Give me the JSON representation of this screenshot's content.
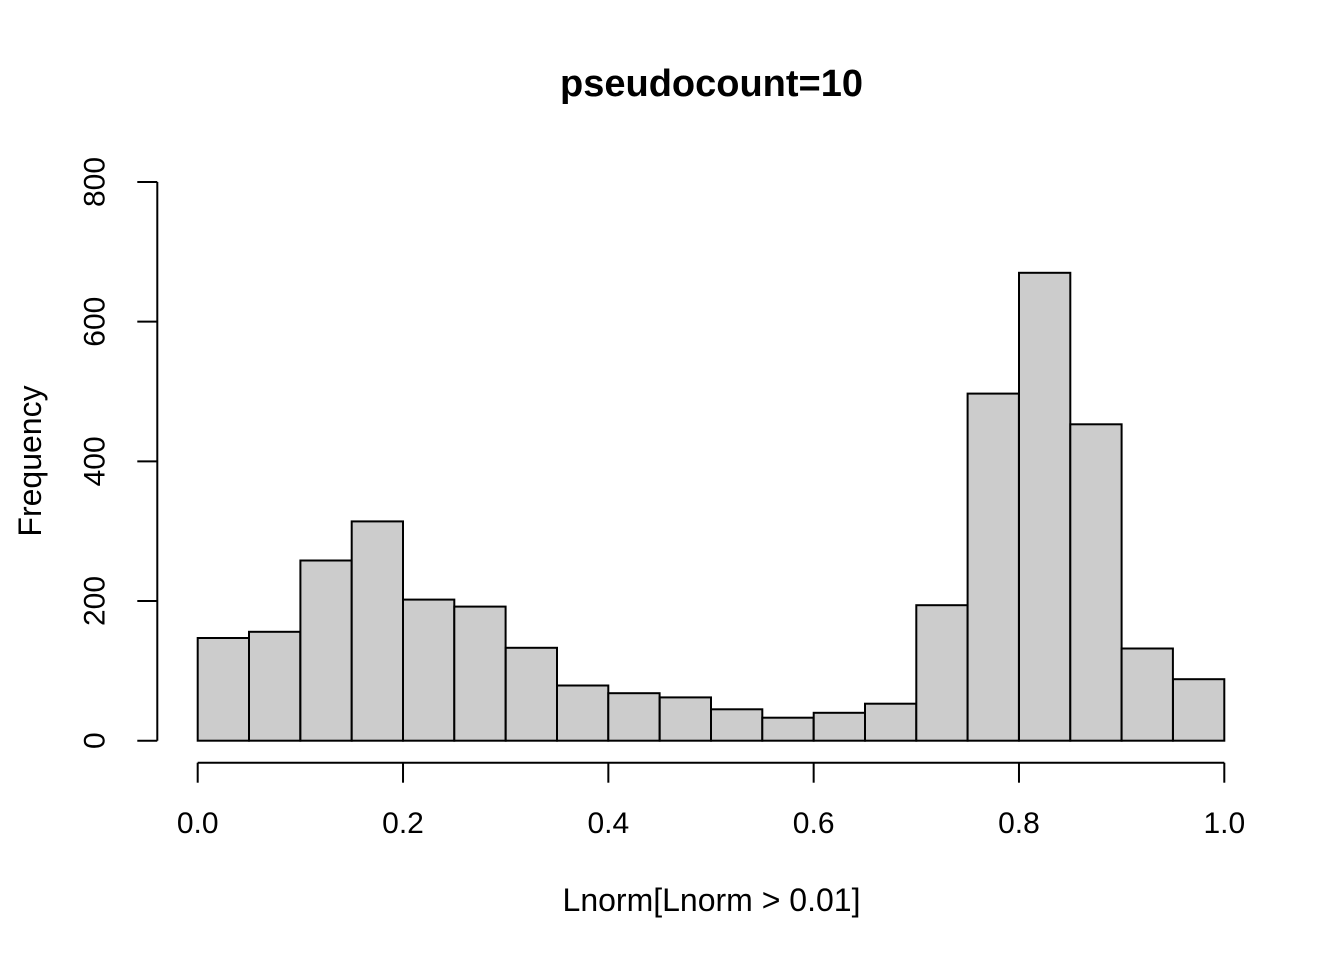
{
  "figure": {
    "title": "pseudocount=10",
    "xlabel": "Lnorm[Lnorm > 0.01]",
    "ylabel": "Frequency"
  },
  "chart_data": {
    "type": "bar",
    "subtype": "histogram",
    "title": "pseudocount=10",
    "xlabel": "Lnorm[Lnorm > 0.01]",
    "ylabel": "Frequency",
    "bin_start": 0.0,
    "bin_width": 0.05,
    "bin_edges": [
      0.0,
      0.05,
      0.1,
      0.15,
      0.2,
      0.25,
      0.3,
      0.35,
      0.4,
      0.45,
      0.5,
      0.55,
      0.6,
      0.65,
      0.7,
      0.75,
      0.8,
      0.85,
      0.9,
      0.95,
      1.0
    ],
    "values": [
      147,
      156,
      258,
      314,
      202,
      192,
      133,
      79,
      68,
      62,
      45,
      33,
      40,
      53,
      194,
      497,
      670,
      453,
      132,
      88
    ],
    "xlim": [
      0.0,
      1.0
    ],
    "ylim": [
      0,
      800
    ],
    "x_ticks": [
      0.0,
      0.2,
      0.4,
      0.6,
      0.8,
      1.0
    ],
    "x_tick_labels": [
      "0.0",
      "0.2",
      "0.4",
      "0.6",
      "0.8",
      "1.0"
    ],
    "y_ticks": [
      0,
      200,
      400,
      600,
      800
    ],
    "y_tick_labels": [
      "0",
      "200",
      "400",
      "600",
      "800"
    ],
    "grid": false,
    "legend": null,
    "bar_fill": "#cccccc",
    "bar_stroke": "#000000",
    "axis_color": "#000000"
  }
}
